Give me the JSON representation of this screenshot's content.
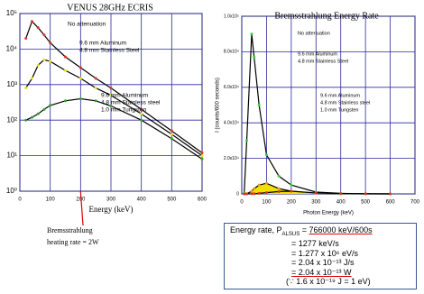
{
  "chart_data": [
    {
      "type": "line",
      "title": "VENUS 28GHz ECRIS",
      "x_label": "Energy (keV)",
      "x": [
        20,
        40,
        60,
        80,
        100,
        150,
        200,
        250,
        300,
        400,
        500,
        600
      ],
      "series": [
        {
          "name": "No attenuation",
          "color": "#000000",
          "marker_color": "#e03020",
          "values": [
            20000,
            60000,
            40000,
            25000,
            15000,
            6000,
            3000,
            1500,
            800,
            200,
            50,
            12
          ]
        },
        {
          "name": "9.6 mm Aluminum + 4.8 mm Stainless Steel",
          "color": "#000000",
          "marker_color": "#e8e020",
          "values": [
            800,
            1500,
            3500,
            5000,
            4500,
            2500,
            1500,
            800,
            500,
            150,
            40,
            10
          ]
        },
        {
          "name": "9.6 mm Aluminum + 4.8 mm Stainless steel + 1.0 mm Tungsten",
          "color": "#000000",
          "marker_color": "#30a030",
          "values": [
            100,
            120,
            150,
            200,
            260,
            350,
            400,
            350,
            250,
            100,
            30,
            8
          ]
        }
      ],
      "xlim": [
        0,
        600
      ],
      "xticks": [
        0,
        100,
        200,
        300,
        400,
        500,
        600
      ],
      "ylim": [
        1,
        100000
      ],
      "log_y": true,
      "yticks": [
        {
          "value": 1,
          "label": "10⁰"
        },
        {
          "value": 10,
          "label": "10¹"
        },
        {
          "value": 100,
          "label": "10²"
        },
        {
          "value": 1000,
          "label": "10³"
        },
        {
          "value": 10000,
          "label": "10⁴"
        },
        {
          "value": 100000,
          "label": "10⁵"
        }
      ],
      "grid": true,
      "grid_color": "#2a2aa0",
      "annotations": [
        "No attenuation",
        "9.6 mm Aluminum",
        "4.8 mm Stainless Steel",
        "9.6 mm Aluminum",
        "4.8 mm Stainless steel",
        "1.0 mm Tungsten"
      ],
      "note": [
        "Bremsstrahlung",
        "heating rate = 2W"
      ]
    },
    {
      "type": "line",
      "title": "Bremsstrahlung Energy Rate",
      "x_label": "Photon Energy (keV)",
      "y_label": "I (counts/600 seconds)",
      "x": [
        10,
        20,
        40,
        50,
        70,
        100,
        150,
        200,
        300,
        400,
        500,
        600
      ],
      "series": [
        {
          "name": "No attenuation",
          "color": "#000000",
          "marker_color": "#30d030",
          "values": [
            500,
            30000,
            90000,
            77000,
            50000,
            22000,
            10000,
            5000,
            1000,
            300,
            100,
            20
          ]
        },
        {
          "name": "9.6 mm Aluminum + 4.8 mm Stainless Steel",
          "color": "#000000",
          "marker_color": "#e8a020",
          "fill": "#f0e000",
          "values": [
            0,
            100,
            1500,
            3000,
            5000,
            6000,
            3000,
            1500,
            300,
            80,
            20,
            5
          ]
        },
        {
          "name": "9.6 mm Aluminum + 4.8 mm Stainless steel + 1.0 mm Tungsten",
          "color": "#000000",
          "marker_color": "#e03020",
          "fill": "#f0e000",
          "values": [
            0,
            0,
            50,
            100,
            300,
            700,
            1300,
            1500,
            500,
            150,
            40,
            10
          ]
        }
      ],
      "xlim": [
        0,
        700
      ],
      "xticks": [
        0,
        100,
        200,
        300,
        400,
        500,
        600,
        700
      ],
      "ylim": [
        0,
        100000
      ],
      "yticks": [
        0,
        {
          "value": 20000,
          "label": "2.0x10⁴"
        },
        {
          "value": 40000,
          "label": "4.0x10⁴"
        },
        {
          "value": 60000,
          "label": "6.0x10⁴"
        },
        {
          "value": 80000,
          "label": "8.0x10⁴"
        },
        {
          "value": 100000,
          "label": "1.0x10⁵"
        }
      ],
      "grid": true,
      "grid_color": "#2a2aa0",
      "annotations": [
        "No attenuation",
        "9.6 mm Aluminum",
        "4.8 mm Stainless Steel",
        "9.6 mm Aluminum",
        "4.8 mm Stainless steel",
        "1.0 mm Tungsten"
      ]
    }
  ],
  "equation_box": {
    "label": "Energy rate, P",
    "subscript": "ALSUS",
    "equals": "=",
    "value": "766000 keV/600s",
    "lines": [
      "= 1277 keV/s",
      "= 1.277 x 10⁶ eV/s",
      "= 2.04 x 10⁻¹³ J/s",
      "= 2.04 x 10⁻¹³ W",
      "(∵ 1.6 x 10⁻¹⁹ J = 1 eV)"
    ]
  }
}
